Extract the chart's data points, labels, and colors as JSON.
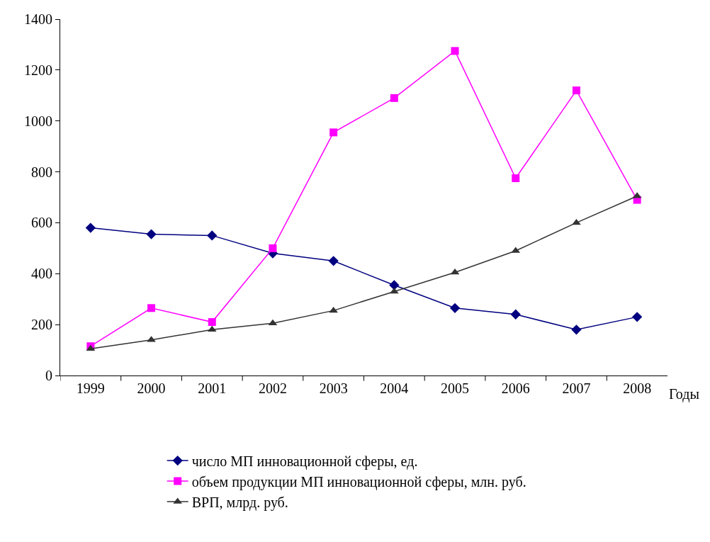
{
  "chart_data": {
    "type": "line",
    "xlabel": "Годы",
    "categories": [
      "1999",
      "2000",
      "2001",
      "2002",
      "2003",
      "2004",
      "2005",
      "2006",
      "2007",
      "2008"
    ],
    "ylim": [
      0,
      1400
    ],
    "yticks": [
      0,
      200,
      400,
      600,
      800,
      1000,
      1200,
      1400
    ],
    "grid": false,
    "legend": "bottom",
    "line_style": "solid",
    "series": [
      {
        "name": "число МП инновационной сферы, ед.",
        "color": "#000080",
        "marker": "diamond",
        "values": [
          580,
          555,
          550,
          480,
          450,
          355,
          265,
          240,
          180,
          230
        ]
      },
      {
        "name": "объем продукции МП инновационной сферы, млн. руб.",
        "color": "#ff00ff",
        "marker": "square",
        "values": [
          115,
          265,
          210,
          500,
          955,
          1090,
          1275,
          775,
          1120,
          690
        ]
      },
      {
        "name": "ВРП, млрд. руб.",
        "color": "#333333",
        "marker": "triangle",
        "values": [
          105,
          140,
          180,
          205,
          255,
          330,
          405,
          490,
          600,
          705
        ]
      }
    ]
  }
}
